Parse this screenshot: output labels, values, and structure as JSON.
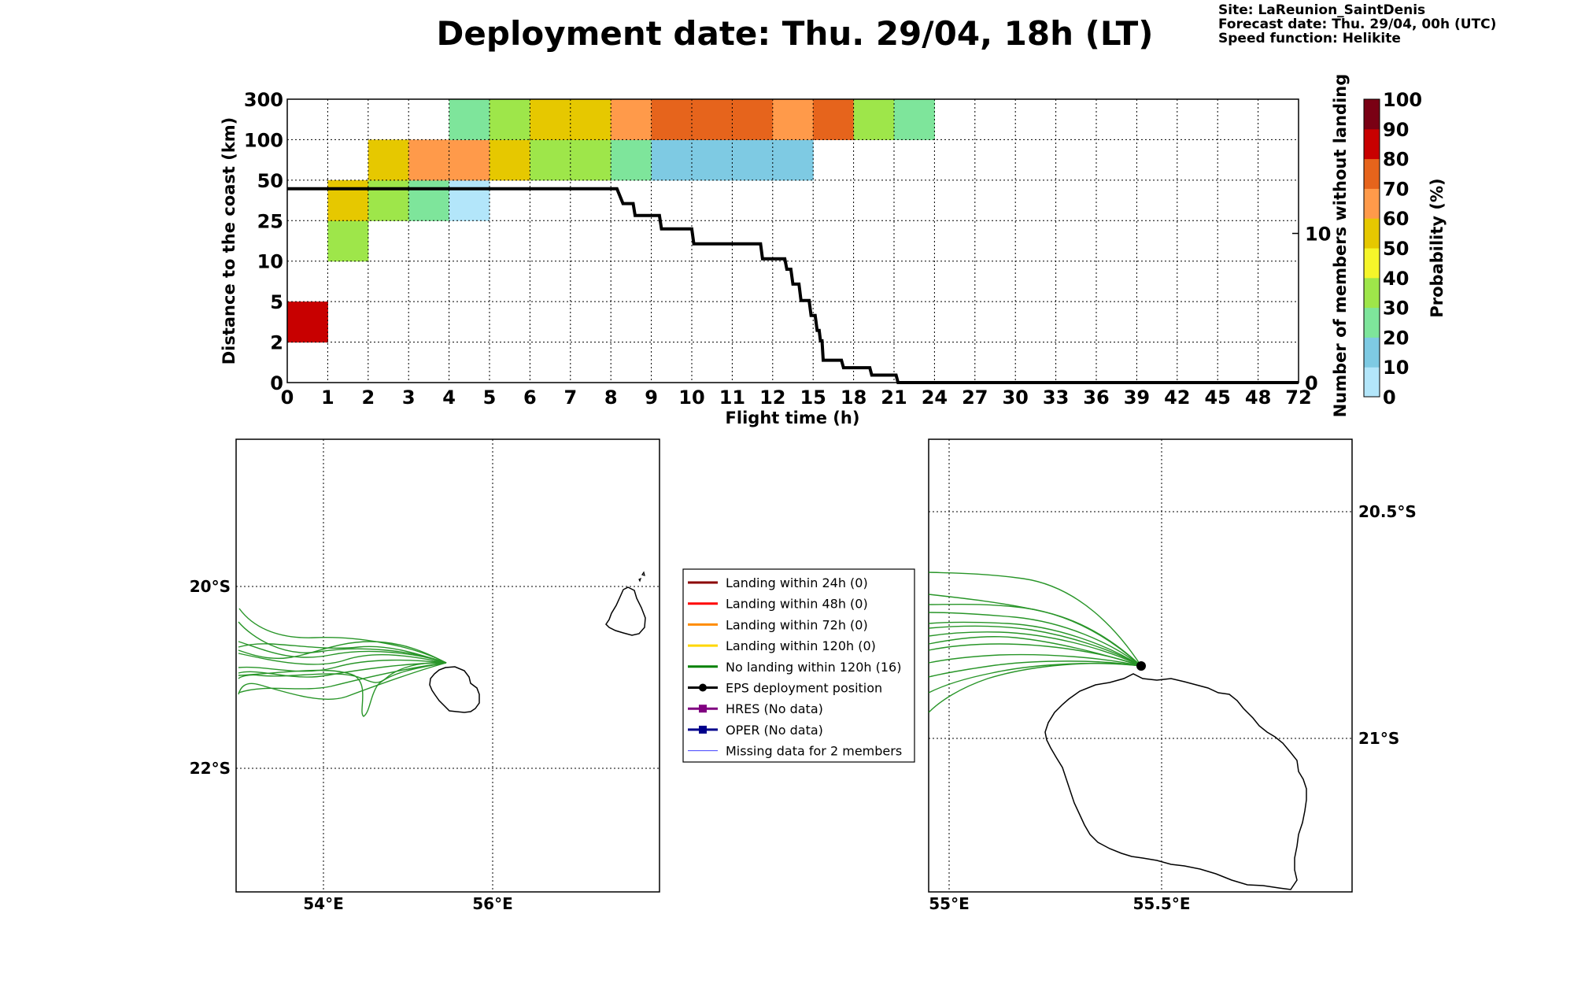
{
  "header": {
    "title": "Deployment date: Thu. 29/04, 18h (LT)",
    "site": "Site: LaReunion_SaintDenis",
    "forecast": "Forecast date: Thu. 29/04, 00h (UTC)",
    "speed": "Speed function: Helikite"
  },
  "chart_data": [
    {
      "type": "heatmap",
      "title": "",
      "xlabel": "Flight time (h)",
      "ylabel": "Distance to the coast (km)",
      "y2label": "Number of members without landing",
      "x_ticks": [
        "0",
        "1",
        "2",
        "3",
        "4",
        "5",
        "6",
        "7",
        "8",
        "9",
        "10",
        "11",
        "12",
        "15",
        "18",
        "21",
        "24",
        "27",
        "30",
        "33",
        "36",
        "39",
        "42",
        "45",
        "48",
        "72"
      ],
      "y_ticks": [
        "0",
        "2",
        "5",
        "10",
        "25",
        "50",
        "100",
        "300"
      ],
      "y2_ticks": [
        "0",
        "10"
      ],
      "y2lim": [
        0,
        19
      ],
      "colorbar": {
        "label": "Probability (%)",
        "ticks": [
          "0",
          "10",
          "20",
          "30",
          "40",
          "50",
          "60",
          "70",
          "80",
          "90",
          "100"
        ],
        "bins": [
          0,
          5,
          10,
          15,
          20,
          25,
          30,
          35,
          40,
          45,
          50,
          55,
          60,
          65,
          70,
          75,
          80,
          85,
          90,
          95
        ],
        "colors": [
          "#b3e6fa",
          "#b3e6fa",
          "#7ecae3",
          "#7ecae3",
          "#7ee59b",
          "#7ee59b",
          "#9ee64a",
          "#9ee64a",
          "#f5f52a",
          "#f5f52a",
          "#e6c800",
          "#e6c800",
          "#ff9a4a",
          "#ff9a4a",
          "#e6641c",
          "#e6641c",
          "#c80000",
          "#c80000",
          "#7a0014",
          "#7a0014"
        ]
      },
      "cells": [
        {
          "x": 0,
          "y": 1,
          "p": 85
        },
        {
          "x": 1,
          "y": 3,
          "p": 30
        },
        {
          "x": 1,
          "y": 4,
          "p": 50
        },
        {
          "x": 2,
          "y": 4,
          "p": 30
        },
        {
          "x": 2,
          "y": 5,
          "p": 50
        },
        {
          "x": 3,
          "y": 4,
          "p": 20
        },
        {
          "x": 3,
          "y": 5,
          "p": 60
        },
        {
          "x": 4,
          "y": 4,
          "p": 5
        },
        {
          "x": 4,
          "y": 5,
          "p": 60
        },
        {
          "x": 4,
          "y": 6,
          "p": 20
        },
        {
          "x": 5,
          "y": 5,
          "p": 50
        },
        {
          "x": 5,
          "y": 6,
          "p": 30
        },
        {
          "x": 6,
          "y": 5,
          "p": 30
        },
        {
          "x": 6,
          "y": 6,
          "p": 50
        },
        {
          "x": 7,
          "y": 5,
          "p": 30
        },
        {
          "x": 7,
          "y": 6,
          "p": 50
        },
        {
          "x": 8,
          "y": 5,
          "p": 20
        },
        {
          "x": 8,
          "y": 6,
          "p": 60
        },
        {
          "x": 9,
          "y": 5,
          "p": 10
        },
        {
          "x": 9,
          "y": 6,
          "p": 70
        },
        {
          "x": 10,
          "y": 5,
          "p": 10
        },
        {
          "x": 10,
          "y": 6,
          "p": 70
        },
        {
          "x": 11,
          "y": 5,
          "p": 10
        },
        {
          "x": 11,
          "y": 6,
          "p": 70
        },
        {
          "x": 12,
          "y": 5,
          "p": 10
        },
        {
          "x": 12,
          "y": 6,
          "p": 60
        },
        {
          "x": 13,
          "y": 6,
          "p": 70
        },
        {
          "x": 14,
          "y": 6,
          "p": 30
        },
        {
          "x": 15,
          "y": 6,
          "p": 20
        }
      ],
      "members_line": [
        [
          0,
          13
        ],
        [
          8.15,
          13
        ],
        [
          8.3,
          12
        ],
        [
          8.55,
          12
        ],
        [
          8.6,
          11.2
        ],
        [
          9.2,
          11.2
        ],
        [
          9.25,
          10.3
        ],
        [
          10,
          10.3
        ],
        [
          10.05,
          9.3
        ],
        [
          11.7,
          9.3
        ],
        [
          11.75,
          8.3
        ],
        [
          12.3,
          8.3
        ],
        [
          12.35,
          7.6
        ],
        [
          12.45,
          7.6
        ],
        [
          12.5,
          6.6
        ],
        [
          12.65,
          6.6
        ],
        [
          12.7,
          5.5
        ],
        [
          12.9,
          5.5
        ],
        [
          12.95,
          4.5
        ],
        [
          13.05,
          4.5
        ],
        [
          13.1,
          3.5
        ],
        [
          13.15,
          3.5
        ],
        [
          13.18,
          2.8
        ],
        [
          13.22,
          2.8
        ],
        [
          13.25,
          1.5
        ],
        [
          13.7,
          1.5
        ],
        [
          13.75,
          1.0
        ],
        [
          14.4,
          1.0
        ],
        [
          14.45,
          0.5
        ],
        [
          15.05,
          0.5
        ],
        [
          15.1,
          0
        ],
        [
          25,
          0
        ]
      ]
    },
    {
      "type": "map",
      "name": "regional",
      "lon_ticks": [
        "54°E",
        "56°E"
      ],
      "lat_ticks": [
        "20°S",
        "22°S"
      ]
    },
    {
      "type": "map",
      "name": "zoom",
      "lon_ticks": [
        "55°E",
        "55.5°E"
      ],
      "lat_ticks": [
        "20.5°S",
        "21°S"
      ]
    }
  ],
  "legend": [
    {
      "label": "Landing within 24h (0)",
      "color": "#8b0000",
      "marker": "none"
    },
    {
      "label": "Landing within 48h (0)",
      "color": "#ff0000",
      "marker": "none"
    },
    {
      "label": "Landing within 72h (0)",
      "color": "#ff8c00",
      "marker": "none"
    },
    {
      "label": "Landing within 120h (0)",
      "color": "#ffd700",
      "marker": "none"
    },
    {
      "label": "No landing within 120h (16)",
      "color": "#008000",
      "marker": "none"
    },
    {
      "label": "EPS deployment position",
      "color": "#000000",
      "marker": "circle"
    },
    {
      "label": "HRES (No data)",
      "color": "#800080",
      "marker": "square"
    },
    {
      "label": "OPER (No data)",
      "color": "#00008b",
      "marker": "square"
    },
    {
      "label": "Missing data for 2 members",
      "color": "#4040ff",
      "marker": "thin"
    }
  ]
}
